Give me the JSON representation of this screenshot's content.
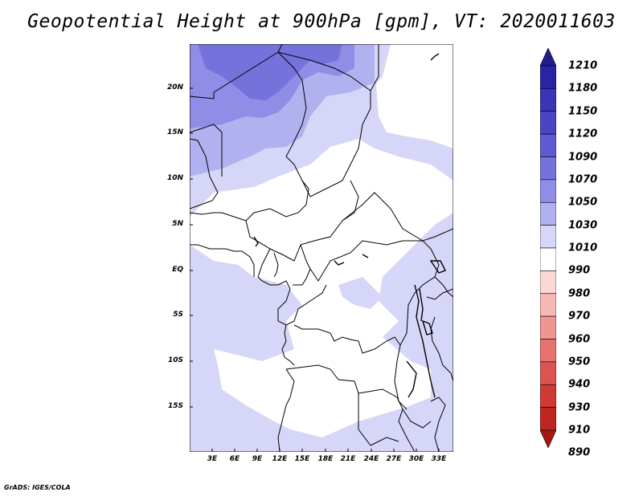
{
  "title": "Geopotential Height at 900hPa [gpm], VT: 2020011603",
  "credit": "GrADS: IGES/COLA",
  "map": {
    "lat_labels": [
      "20N",
      "15N",
      "10N",
      "5N",
      "EQ",
      "5S",
      "10S",
      "15S"
    ],
    "lon_labels": [
      "3E",
      "6E",
      "9E",
      "12E",
      "15E",
      "18E",
      "21E",
      "24E",
      "27E",
      "30E",
      "33E"
    ]
  },
  "colorbar": {
    "levels": [
      "1210",
      "1180",
      "1150",
      "1120",
      "1090",
      "1070",
      "1050",
      "1030",
      "1010",
      "990",
      "980",
      "970",
      "960",
      "950",
      "940",
      "930",
      "910",
      "890"
    ],
    "colors": [
      "#231b8c",
      "#2a24a4",
      "#3a34b6",
      "#4a45c4",
      "#5e5ad2",
      "#7572dc",
      "#8f8de6",
      "#b2b1ef",
      "#d6d6f8",
      "#ffffff",
      "#fbd8d5",
      "#f6b8b2",
      "#ef9690",
      "#e57470",
      "#dc5450",
      "#cf3a35",
      "#bf2620",
      "#a51811"
    ]
  }
}
